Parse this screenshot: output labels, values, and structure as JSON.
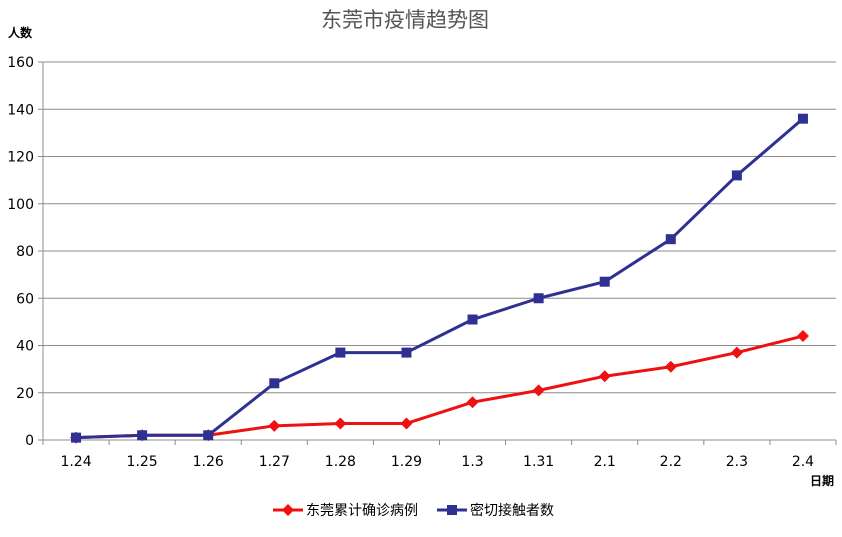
{
  "chart_data": {
    "type": "line",
    "title": "东莞市疫情趋势图",
    "ylabel": "人数",
    "xlabel": "日期",
    "categories": [
      "1.24",
      "1.25",
      "1.26",
      "1.27",
      "1.28",
      "1.29",
      "1.3",
      "1.31",
      "2.1",
      "2.2",
      "2.3",
      "2.4"
    ],
    "ylim": [
      0,
      160
    ],
    "yticks": [
      0,
      20,
      40,
      60,
      80,
      100,
      120,
      140,
      160
    ],
    "grid": true,
    "legend_position": "bottom",
    "series": [
      {
        "name": "东莞累计确诊病例",
        "color": "#ee1111",
        "marker": "diamond",
        "values": [
          1,
          2,
          2,
          6,
          7,
          7,
          16,
          21,
          27,
          31,
          37,
          44
        ]
      },
      {
        "name": "密切接触者数",
        "color": "#2e3192",
        "marker": "square",
        "values": [
          1,
          2,
          2,
          24,
          37,
          37,
          51,
          60,
          67,
          85,
          112,
          136
        ]
      }
    ]
  }
}
